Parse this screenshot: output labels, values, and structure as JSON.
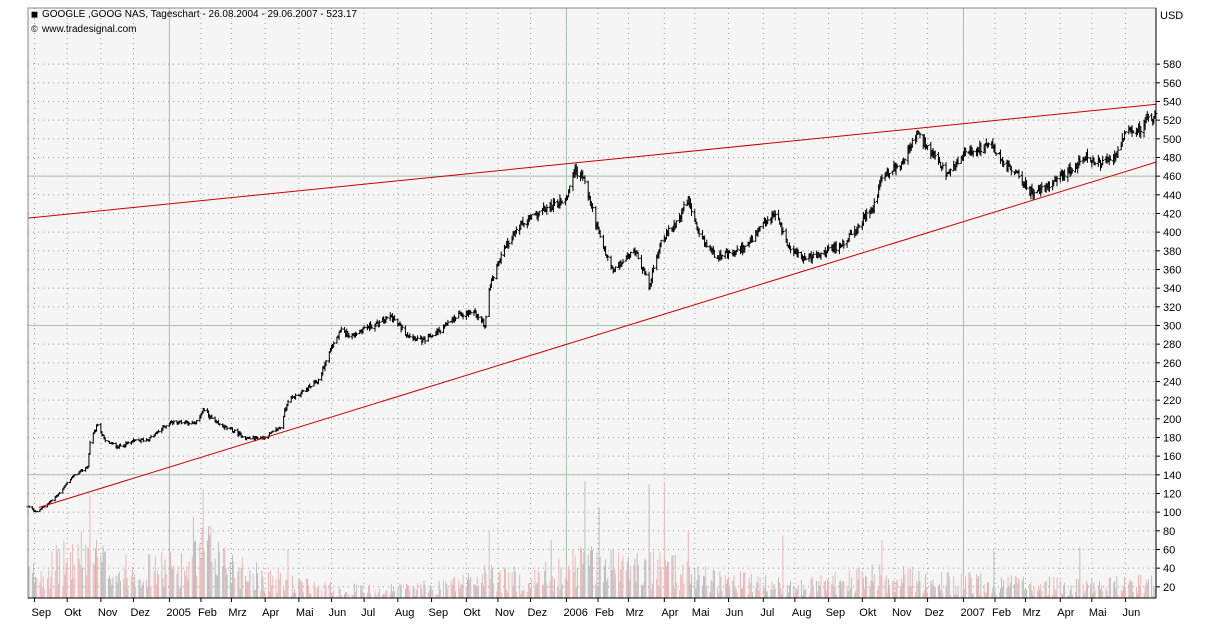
{
  "header": {
    "title": "GOOGLE ,GOOG NAS, Tageschart - 26.08.2004 - 29.06.2007 - 523.17",
    "source": "www.tradesignal.com",
    "title_icon": "chart-symbol-icon",
    "source_icon": "copyright-icon"
  },
  "chart_data": {
    "type": "candlestick",
    "title": "GOOGLE ,GOOG NAS, Tageschart - 26.08.2004 - 29.06.2007 - 523.17",
    "unit": "USD",
    "xlabel": "",
    "ylabel": "USD",
    "xlim": [
      "2004-08-26",
      "2007-06-29"
    ],
    "ylim": [
      8,
      608
    ],
    "y_ticks": [
      20,
      40,
      60,
      80,
      100,
      120,
      140,
      160,
      180,
      200,
      220,
      240,
      260,
      280,
      300,
      320,
      340,
      360,
      380,
      400,
      420,
      440,
      460,
      480,
      500,
      520,
      540,
      560,
      580
    ],
    "y_tick_labels": [
      "20",
      "40",
      "60",
      "80",
      "100",
      "120",
      "140",
      "160",
      "180",
      "200",
      "220",
      "240",
      "260",
      "280",
      "300",
      "320",
      "340",
      "360",
      "380",
      "400",
      "420",
      "440",
      "460",
      "480",
      "500",
      "520",
      "540",
      "560",
      "580"
    ],
    "x_ticks": [
      {
        "date": "2004-09-01",
        "label": "Sep"
      },
      {
        "date": "2004-10-01",
        "label": "Okt"
      },
      {
        "date": "2004-11-01",
        "label": "Nov"
      },
      {
        "date": "2004-12-01",
        "label": "Dez"
      },
      {
        "date": "2005-01-03",
        "label": "2005"
      },
      {
        "date": "2005-02-01",
        "label": "Feb"
      },
      {
        "date": "2005-03-01",
        "label": "Mrz"
      },
      {
        "date": "2005-04-01",
        "label": "Apr"
      },
      {
        "date": "2005-05-02",
        "label": "Mai"
      },
      {
        "date": "2005-06-01",
        "label": "Jun"
      },
      {
        "date": "2005-07-01",
        "label": "Jul"
      },
      {
        "date": "2005-08-01",
        "label": "Aug"
      },
      {
        "date": "2005-09-01",
        "label": "Sep"
      },
      {
        "date": "2005-10-03",
        "label": "Okt"
      },
      {
        "date": "2005-11-01",
        "label": "Nov"
      },
      {
        "date": "2005-12-01",
        "label": "Dez"
      },
      {
        "date": "2006-01-03",
        "label": "2006"
      },
      {
        "date": "2006-02-01",
        "label": "Feb"
      },
      {
        "date": "2006-03-01",
        "label": "Mrz"
      },
      {
        "date": "2006-04-03",
        "label": "Apr"
      },
      {
        "date": "2006-05-01",
        "label": "Mai"
      },
      {
        "date": "2006-06-01",
        "label": "Jun"
      },
      {
        "date": "2006-07-03",
        "label": "Jul"
      },
      {
        "date": "2006-08-01",
        "label": "Aug"
      },
      {
        "date": "2006-09-01",
        "label": "Sep"
      },
      {
        "date": "2006-10-02",
        "label": "Okt"
      },
      {
        "date": "2006-11-01",
        "label": "Nov"
      },
      {
        "date": "2006-12-01",
        "label": "Dez"
      },
      {
        "date": "2007-01-03",
        "label": "2007"
      },
      {
        "date": "2007-02-01",
        "label": "Feb"
      },
      {
        "date": "2007-03-01",
        "label": "Mrz"
      },
      {
        "date": "2007-04-02",
        "label": "Apr"
      },
      {
        "date": "2007-05-01",
        "label": "Mai"
      },
      {
        "date": "2007-06-01",
        "label": "Jun"
      }
    ],
    "major_x_gridlines": [
      "2005-01-03",
      "2006-01-03",
      "2007-01-03"
    ],
    "major_y_gridlines": [
      140,
      300,
      460
    ],
    "grid": true,
    "price_anchors": [
      [
        "2004-08-26",
        106
      ],
      [
        "2004-09-03",
        100
      ],
      [
        "2004-09-10",
        106
      ],
      [
        "2004-09-22",
        118
      ],
      [
        "2004-10-05",
        137
      ],
      [
        "2004-10-20",
        149
      ],
      [
        "2004-10-22",
        175
      ],
      [
        "2004-10-29",
        194
      ],
      [
        "2004-11-05",
        176
      ],
      [
        "2004-11-17",
        170
      ],
      [
        "2004-12-01",
        176
      ],
      [
        "2004-12-15",
        178
      ],
      [
        "2005-01-03",
        196
      ],
      [
        "2005-01-18",
        197
      ],
      [
        "2005-01-27",
        194
      ],
      [
        "2005-02-03",
        210
      ],
      [
        "2005-02-15",
        195
      ],
      [
        "2005-03-01",
        188
      ],
      [
        "2005-03-15",
        179
      ],
      [
        "2005-04-01",
        180
      ],
      [
        "2005-04-15",
        191
      ],
      [
        "2005-04-22",
        220
      ],
      [
        "2005-05-05",
        228
      ],
      [
        "2005-05-20",
        241
      ],
      [
        "2005-06-01",
        277
      ],
      [
        "2005-06-10",
        294
      ],
      [
        "2005-06-20",
        289
      ],
      [
        "2005-07-01",
        297
      ],
      [
        "2005-07-15",
        302
      ],
      [
        "2005-07-25",
        310
      ],
      [
        "2005-08-10",
        290
      ],
      [
        "2005-08-25",
        283
      ],
      [
        "2005-09-10",
        296
      ],
      [
        "2005-09-25",
        310
      ],
      [
        "2005-10-10",
        315
      ],
      [
        "2005-10-20",
        300
      ],
      [
        "2005-10-24",
        340
      ],
      [
        "2005-11-05",
        380
      ],
      [
        "2005-11-20",
        405
      ],
      [
        "2005-12-05",
        418
      ],
      [
        "2005-12-20",
        428
      ],
      [
        "2006-01-03",
        436
      ],
      [
        "2006-01-10",
        466
      ],
      [
        "2006-01-18",
        460
      ],
      [
        "2006-01-25",
        432
      ],
      [
        "2006-02-05",
        385
      ],
      [
        "2006-02-15",
        358
      ],
      [
        "2006-02-25",
        370
      ],
      [
        "2006-03-08",
        381
      ],
      [
        "2006-03-20",
        342
      ],
      [
        "2006-03-31",
        391
      ],
      [
        "2006-04-12",
        407
      ],
      [
        "2006-04-25",
        434
      ],
      [
        "2006-05-05",
        395
      ],
      [
        "2006-05-20",
        375
      ],
      [
        "2006-06-05",
        376
      ],
      [
        "2006-06-20",
        388
      ],
      [
        "2006-07-05",
        410
      ],
      [
        "2006-07-15",
        420
      ],
      [
        "2006-07-25",
        387
      ],
      [
        "2006-08-10",
        371
      ],
      [
        "2006-08-25",
        376
      ],
      [
        "2006-09-10",
        385
      ],
      [
        "2006-09-25",
        399
      ],
      [
        "2006-10-05",
        417
      ],
      [
        "2006-10-12",
        425
      ],
      [
        "2006-10-20",
        460
      ],
      [
        "2006-11-05",
        471
      ],
      [
        "2006-11-22",
        505
      ],
      [
        "2006-12-05",
        484
      ],
      [
        "2006-12-20",
        460
      ],
      [
        "2007-01-05",
        487
      ],
      [
        "2007-01-18",
        489
      ],
      [
        "2007-01-29",
        493
      ],
      [
        "2007-02-10",
        473
      ],
      [
        "2007-02-25",
        458
      ],
      [
        "2007-03-05",
        443
      ],
      [
        "2007-03-15",
        444
      ],
      [
        "2007-03-30",
        458
      ],
      [
        "2007-04-12",
        467
      ],
      [
        "2007-04-26",
        480
      ],
      [
        "2007-05-10",
        472
      ],
      [
        "2007-05-25",
        485
      ],
      [
        "2007-06-01",
        505
      ],
      [
        "2007-06-15",
        510
      ],
      [
        "2007-06-22",
        524
      ],
      [
        "2007-06-29",
        523
      ]
    ],
    "volume_anchors": [
      [
        "2004-08-26",
        30
      ],
      [
        "2004-10-20",
        55
      ],
      [
        "2004-11-15",
        35
      ],
      [
        "2005-01-20",
        40
      ],
      [
        "2005-02-05",
        60
      ],
      [
        "2005-03-15",
        35
      ],
      [
        "2005-05-01",
        20
      ],
      [
        "2005-07-01",
        15
      ],
      [
        "2005-09-01",
        18
      ],
      [
        "2005-10-25",
        30
      ],
      [
        "2005-12-01",
        25
      ],
      [
        "2006-01-20",
        45
      ],
      [
        "2006-03-01",
        40
      ],
      [
        "2006-04-20",
        35
      ],
      [
        "2006-06-01",
        25
      ],
      [
        "2006-08-01",
        18
      ],
      [
        "2006-10-20",
        30
      ],
      [
        "2006-12-01",
        25
      ],
      [
        "2007-02-01",
        22
      ],
      [
        "2007-04-01",
        20
      ],
      [
        "2007-06-29",
        22
      ]
    ],
    "volume_spikes": [
      [
        "2004-10-22",
        118
      ],
      [
        "2005-01-25",
        95
      ],
      [
        "2005-02-03",
        125
      ],
      [
        "2005-04-22",
        60
      ],
      [
        "2005-10-24",
        80
      ],
      [
        "2005-12-20",
        70
      ],
      [
        "2006-01-20",
        133
      ],
      [
        "2006-02-02",
        105
      ],
      [
        "2006-03-20",
        130
      ],
      [
        "2006-04-03",
        132
      ],
      [
        "2006-04-25",
        80
      ],
      [
        "2006-07-21",
        75
      ],
      [
        "2006-10-20",
        70
      ],
      [
        "2007-01-31",
        58
      ],
      [
        "2007-04-20",
        62
      ]
    ],
    "trendlines": [
      {
        "from": [
          "2004-08-26",
          415
        ],
        "to": [
          "2007-06-29",
          537
        ],
        "color": "#cc0000"
      },
      {
        "from": [
          "2004-09-05",
          105
        ],
        "to": [
          "2007-06-29",
          475
        ],
        "color": "#cc0000"
      }
    ],
    "colors": {
      "background": "#f5f5f5",
      "candle": "#000000",
      "volume_up": "#e8b4b4",
      "volume_down": "#b8b8b8",
      "grid": "#9a9a9a",
      "major_grid": "#a8c2a8",
      "trendline": "#cc0000"
    }
  }
}
